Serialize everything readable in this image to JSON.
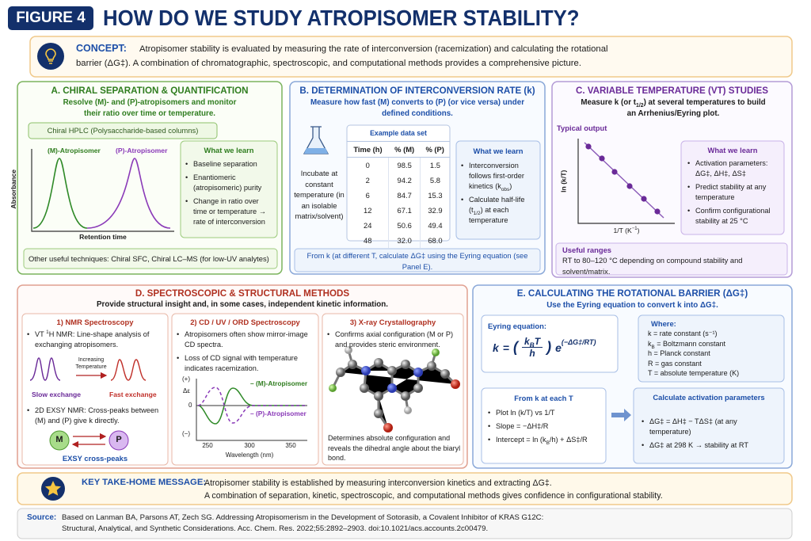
{
  "header": {
    "figure": "FIGURE 4",
    "title": "HOW DO WE STUDY ATROPISOMER STABILITY?"
  },
  "concept": {
    "label": "CONCEPT:",
    "lines": [
      "Atropisomer stability is evaluated by measuring the rate of interconversion (racemization) and calculating the rotational",
      "barrier (ΔG‡).  A combination of chromatographic, spectroscopic, and computational methods provides a comprehensive picture."
    ]
  },
  "panel_a": {
    "title": "A. CHIRAL SEPARATION & QUANTIFICATION",
    "subtitle": "Resolve (M)- and (P)-atropisomers and monitor their ratio over time or temperature.",
    "method": "Chiral HPLC (Polysaccharide-based columns)",
    "y_label": "Absorbance",
    "x_label": "Retention time",
    "peak_m": "(M)-Atropisomer",
    "peak_p": "(P)-Atropisomer",
    "learn_title": "What we learn",
    "learn": [
      "Baseline separation",
      "Enantiomeric (atropisomeric) purity",
      "Change in ratio over time or temperature → rate of interconversion"
    ],
    "other": "Other useful techniques: Chiral SFC, Chiral LC–MS (for low-UV analytes)"
  },
  "panel_b": {
    "title": "B. DETERMINATION OF INTERCONVERSION RATE (k)",
    "subtitle": "Measure how fast (M) converts to (P) (or vice versa) under defined conditions.",
    "incubate": "Incubate at constant temperature (in an isolable matrix/solvent)",
    "table": {
      "caption": "Example data set",
      "header": [
        "Time (h)",
        "% (M)",
        "% (P)"
      ],
      "rows": [
        [
          "0",
          "98.5",
          "1.5"
        ],
        [
          "2",
          "94.2",
          "5.8"
        ],
        [
          "6",
          "84.7",
          "15.3"
        ],
        [
          "12",
          "67.1",
          "32.9"
        ],
        [
          "24",
          "50.6",
          "49.4"
        ],
        [
          "48",
          "32.0",
          "68.0"
        ]
      ]
    },
    "learn_title": "What we learn",
    "learn": [
      {
        "text": "Interconversion follows first-order kinetics (k",
        "sub": "obs",
        "after": ")"
      },
      {
        "text": "Calculate half-life (t",
        "sub": "1/2",
        "after": ") at each temperature"
      }
    ],
    "note": "From k (at different T, calculate ΔG‡ using the Eyring equation (see Panel E)."
  },
  "panel_c": {
    "title": "C. VARIABLE TEMPERATURE (VT) STUDIES",
    "subtitle": {
      "text": "Measure k (or t",
      "sub": "1/2",
      "after": ") at several temperatures to build an Arrhenius/Eyring plot."
    },
    "output": "Typical output",
    "y_label": "ln (k/T)",
    "x_label": {
      "text": "1/T (K",
      "sup": "−1",
      "after": ")"
    },
    "learn_title": "What we learn",
    "learn": [
      "Activation parameters: ΔG‡, ΔH‡, ΔS‡",
      "Predict stability at any temperature",
      "Confirm configurational stability at 25 °C"
    ],
    "ranges_title": "Useful ranges",
    "ranges": "RT to 80–120 °C depending on compound stability and solvent/matrix."
  },
  "panel_d": {
    "title": "D. SPECTROSCOPIC & STRUCTURAL METHODS",
    "subtitle": "Provide structural insight and, in some cases, independent kinetic information.",
    "nmr": {
      "title": "1) NMR Spectroscopy",
      "item1": [
        {
          "text": "VT ",
          "sup": "1",
          "after": "H NMR: Line-shape analysis of exchanging atropisomers."
        }
      ],
      "arrow_label": "Increasing Temperature",
      "slow": "Slow exchange",
      "fast": "Fast exchange",
      "item2": [
        "2D EXSY NMR: Cross-peaks between (M) and (P) give k directly."
      ],
      "m": "M",
      "p": "P",
      "exsy": "EXSY cross-peaks"
    },
    "cd": {
      "title": "2) CD / UV / ORD Spectroscopy",
      "items": [
        "Atropisomers often show mirror-image CD spectra.",
        "Loss of CD signal with temperature indicates racemization."
      ],
      "plus": "(+)",
      "y_label": "Δε",
      "zero": "0",
      "minus": "(−)",
      "m_label": "– (M)-Atropisomer",
      "p_label": "– (P)-Atropisomer",
      "xticks": [
        "250",
        "300",
        "350"
      ],
      "x_label": "Wavelength (nm)"
    },
    "xray": {
      "title": "3) X-ray Crystallography",
      "items": [
        "Confirms axial configuration (M or P) and provides steric environment."
      ],
      "caption": "Determines absolute configuration and reveals the dihedral angle about the biaryl bond."
    }
  },
  "panel_e": {
    "title": "E. CALCULATING THE ROTATIONAL BARRIER (ΔG‡)",
    "subtitle": "Use the Eyring equation to convert k into ΔG‡.",
    "eyring": {
      "label": "Eyring equation:",
      "k": "k",
      "eq": "=",
      "open": "(",
      "num": {
        "text": "k",
        "sub": "B",
        "after": "T"
      },
      "den": "h",
      "close": ")",
      "e": "e",
      "exp": "(−ΔG‡/RT)"
    },
    "where_title": "Where:",
    "where": [
      "k = rate constant (s⁻¹)",
      {
        "text": "k",
        "sub": "B",
        "after": " = Boltzmann constant"
      },
      "h = Planck constant",
      "R = gas constant",
      "T = absolute temperature (K)"
    ],
    "from_title": "From k at each T",
    "from": [
      "Plot ln (k/T) vs 1/T",
      "Slope = −ΔH‡/R",
      {
        "text": "Intercept = ln (k",
        "sub": "B",
        "after": "/h) + ΔS‡/R"
      }
    ],
    "calc_title": "Calculate activation parameters",
    "calc": [
      "ΔG‡ = ΔH‡ − TΔS‡ (at any temperature)",
      "ΔG‡ at 298 K → stability at RT"
    ]
  },
  "key": {
    "label": "KEY TAKE-HOME MESSAGE:",
    "lines": [
      "Atropisomer stability is established by measuring interconversion kinetics and extracting ΔG‡.",
      "A combination of separation, kinetic, spectroscopic, and computational methods gives confidence in configurational stability."
    ]
  },
  "source": {
    "label": "Source:",
    "lines": [
      "Based on Lanman BA, Parsons AT, Zech SG. Addressing Atropisomerism in the Development of Sotorasib, a Covalent Inhibitor of KRAS G12C:",
      "Structural, Analytical, and Synthetic Considerations.  Acc. Chem. Res.  2022;55:2892–2903.  doi:10.1021/acs.accounts.2c00479."
    ]
  }
}
